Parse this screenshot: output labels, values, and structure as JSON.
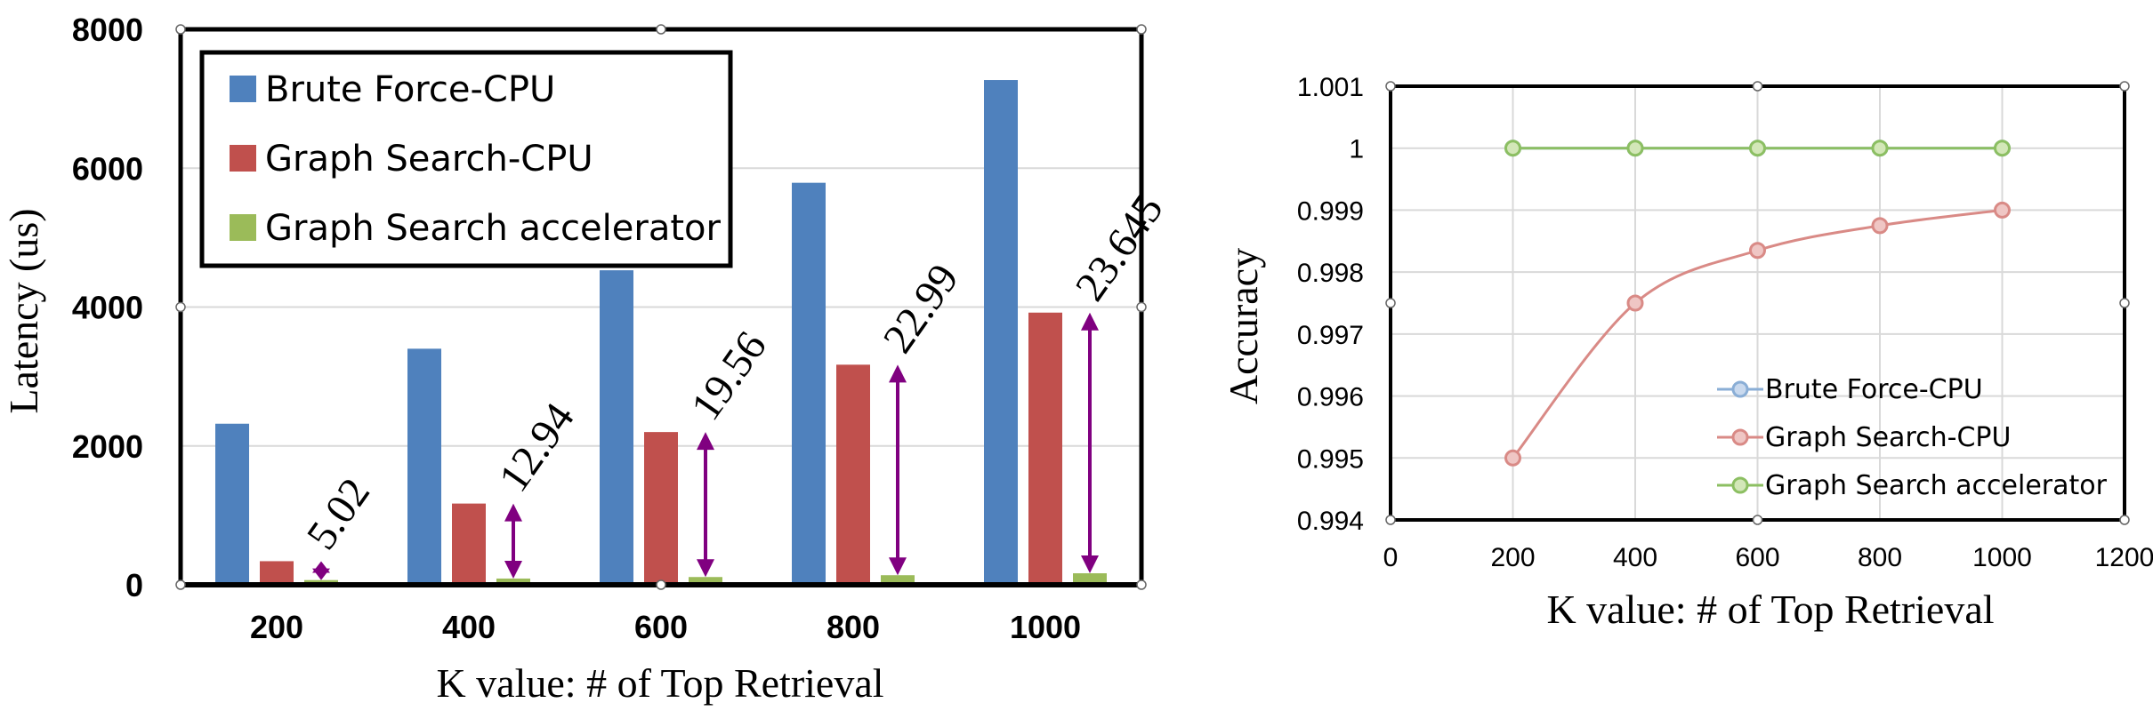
{
  "colors": {
    "brute": "#4F81BD",
    "graph_cpu": "#C0504D",
    "accel": "#9BBB59",
    "arrow": "#800080",
    "grid": "#d9d9d9"
  },
  "chart_data": [
    {
      "type": "bar",
      "categories": [
        "200",
        "400",
        "600",
        "800",
        "1000"
      ],
      "series": [
        {
          "name": "Brute Force-CPU",
          "values": [
            2320,
            3400,
            4530,
            5790,
            7270
          ]
        },
        {
          "name": "Graph Search-CPU",
          "values": [
            340,
            1170,
            2200,
            3170,
            3920
          ]
        },
        {
          "name": "Graph Search accelerator",
          "values": [
            68,
            90,
            112,
            138,
            166
          ]
        }
      ],
      "annotations": [
        "5.02",
        "12.94",
        "19.56",
        "22.99",
        "23.645"
      ],
      "xlabel": "K value: # of Top Retrieval",
      "ylabel": "Latency (us)",
      "ylim": [
        0,
        8000
      ],
      "yticks": [
        "0",
        "2000",
        "4000",
        "6000",
        "8000"
      ],
      "legend": "top-left",
      "grid": true
    },
    {
      "type": "line",
      "x": [
        200,
        400,
        600,
        800,
        1000
      ],
      "series": [
        {
          "name": "Brute Force-CPU",
          "values": [
            1,
            1,
            1,
            1,
            1
          ]
        },
        {
          "name": "Graph Search-CPU",
          "values": [
            0.995,
            0.9975,
            0.99835,
            0.99875,
            0.999
          ]
        },
        {
          "name": "Graph Search accelerator",
          "values": [
            1,
            1,
            1,
            1,
            1
          ]
        }
      ],
      "xlabel": "K value: # of Top Retrieval",
      "ylabel": "Accuracy",
      "xlim": [
        0,
        1200
      ],
      "xticks": [
        "0",
        "200",
        "400",
        "600",
        "800",
        "1000",
        "1200"
      ],
      "ylim": [
        0.994,
        1.001
      ],
      "yticks": [
        "0.994",
        "0.995",
        "0.996",
        "0.997",
        "0.998",
        "0.999",
        "1",
        "1.001"
      ],
      "legend": "bottom-right",
      "grid": true
    }
  ]
}
